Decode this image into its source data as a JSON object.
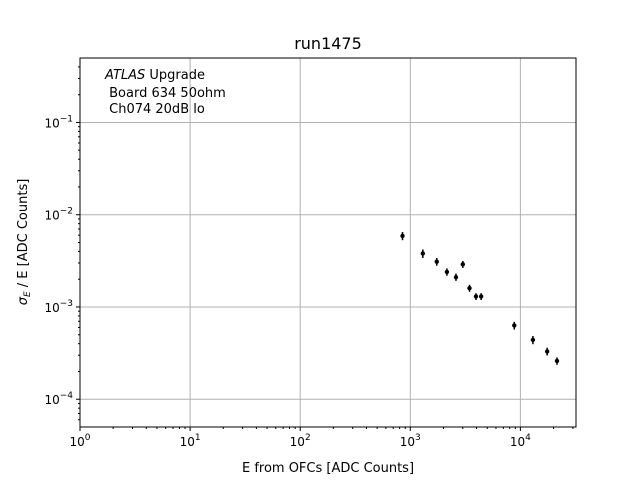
{
  "chart_data": {
    "type": "scatter",
    "title": "run1475",
    "xlabel": "E from OFCs [ADC Counts]",
    "ylabel_main": "σ",
    "ylabel_sub": "E",
    "ylabel_rest": " / E [ADC Counts]",
    "xscale": "log",
    "yscale": "log",
    "xlim": [
      1,
      32000
    ],
    "ylim": [
      5e-05,
      0.5
    ],
    "grid": true,
    "x_ticks": [
      {
        "value": 1,
        "base": "10",
        "exp": "0"
      },
      {
        "value": 10,
        "base": "10",
        "exp": "1"
      },
      {
        "value": 100,
        "base": "10",
        "exp": "2"
      },
      {
        "value": 1000,
        "base": "10",
        "exp": "3"
      },
      {
        "value": 10000,
        "base": "10",
        "exp": "4"
      }
    ],
    "y_ticks": [
      {
        "value": 0.0001,
        "base": "10",
        "exp": "−4"
      },
      {
        "value": 0.001,
        "base": "10",
        "exp": "−3"
      },
      {
        "value": 0.01,
        "base": "10",
        "exp": "−2"
      },
      {
        "value": 0.1,
        "base": "10",
        "exp": "−1"
      }
    ],
    "annotation": {
      "italic": "ATLAS",
      "rest": " Upgrade",
      "line2": " Board 634 50ohm",
      "line3": " Ch074 20dB lo"
    },
    "points": [
      {
        "x": 850,
        "y": 0.0059,
        "yerr_lo": 0.0053,
        "yerr_hi": 0.0065
      },
      {
        "x": 1300,
        "y": 0.0038,
        "yerr_lo": 0.0034,
        "yerr_hi": 0.0042
      },
      {
        "x": 1740,
        "y": 0.0031,
        "yerr_lo": 0.0028,
        "yerr_hi": 0.0034
      },
      {
        "x": 2150,
        "y": 0.0024,
        "yerr_lo": 0.00218,
        "yerr_hi": 0.00262
      },
      {
        "x": 2600,
        "y": 0.0021,
        "yerr_lo": 0.00192,
        "yerr_hi": 0.0023
      },
      {
        "x": 3000,
        "y": 0.0029,
        "yerr_lo": 0.00265,
        "yerr_hi": 0.00315
      },
      {
        "x": 3450,
        "y": 0.0016,
        "yerr_lo": 0.00146,
        "yerr_hi": 0.00174
      },
      {
        "x": 3950,
        "y": 0.0013,
        "yerr_lo": 0.00119,
        "yerr_hi": 0.00141
      },
      {
        "x": 4400,
        "y": 0.0013,
        "yerr_lo": 0.00119,
        "yerr_hi": 0.00141
      },
      {
        "x": 8800,
        "y": 0.00063,
        "yerr_lo": 0.00057,
        "yerr_hi": 0.00069
      },
      {
        "x": 13000,
        "y": 0.00044,
        "yerr_lo": 0.000395,
        "yerr_hi": 0.000485
      },
      {
        "x": 17500,
        "y": 0.00033,
        "yerr_lo": 0.000298,
        "yerr_hi": 0.000362
      },
      {
        "x": 21500,
        "y": 0.00026,
        "yerr_lo": 0.000236,
        "yerr_hi": 0.000284
      }
    ]
  }
}
